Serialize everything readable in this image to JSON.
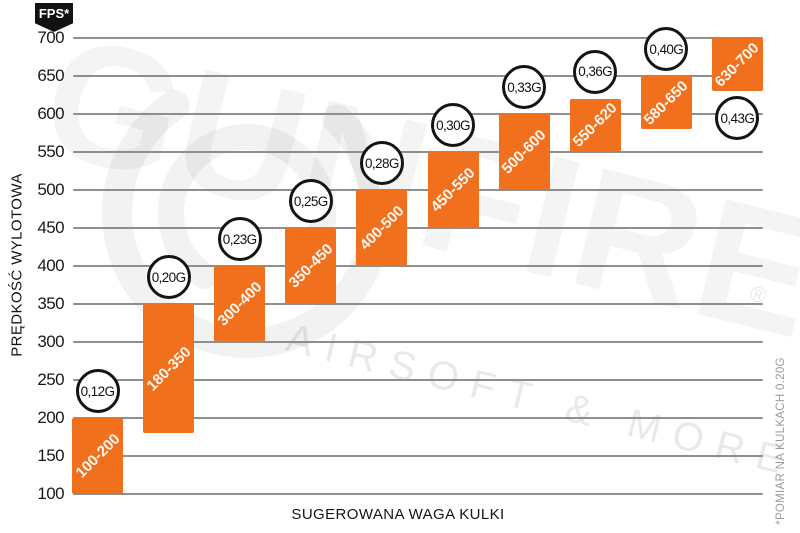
{
  "chart_data": {
    "type": "bar",
    "title": "",
    "xlabel": "SUGEROWANA WAGA KULKI",
    "ylabel": "PRĘDKOŚĆ WYLOTOWA",
    "y_unit_badge": "FPS*",
    "footnote": "*POMIAR NA KULKACH 0.20G",
    "ylim": [
      100,
      700
    ],
    "yticks": [
      700,
      650,
      600,
      550,
      500,
      450,
      400,
      350,
      300,
      250,
      200,
      150,
      100
    ],
    "grid": "horizontal",
    "legend_position": "none",
    "bar_color": "#F0701E",
    "gridline_color": "#8e8e8e",
    "badge_color": "#121212",
    "categories": [
      "0,12G",
      "0,20G",
      "0,23G",
      "0,25G",
      "0,28G",
      "0,30G",
      "0,33G",
      "0,36G",
      "0,40G",
      "0,43G"
    ],
    "bars": [
      {
        "weight": "0,12G",
        "label": "100-200",
        "fps_min": 100,
        "fps_max": 200
      },
      {
        "weight": "0,20G",
        "label": "180-350",
        "fps_min": 180,
        "fps_max": 350
      },
      {
        "weight": "0,23G",
        "label": "300-400",
        "fps_min": 300,
        "fps_max": 400
      },
      {
        "weight": "0,25G",
        "label": "350-450",
        "fps_min": 350,
        "fps_max": 450
      },
      {
        "weight": "0,28G",
        "label": "400-500",
        "fps_min": 400,
        "fps_max": 500
      },
      {
        "weight": "0,30G",
        "label": "450-550",
        "fps_min": 450,
        "fps_max": 550
      },
      {
        "weight": "0,33G",
        "label": "500-600",
        "fps_min": 500,
        "fps_max": 600
      },
      {
        "weight": "0,36G",
        "label": "550-620",
        "fps_min": 550,
        "fps_max": 620
      },
      {
        "weight": "0,40G",
        "label": "580-650",
        "fps_min": 580,
        "fps_max": 650
      },
      {
        "weight": "0,43G",
        "label": "630-700",
        "fps_min": 630,
        "fps_max": 700
      }
    ],
    "watermark": {
      "brand": "GUNFIRE",
      "registered": "®",
      "tagline": "AIRSOFT & MORE"
    }
  }
}
